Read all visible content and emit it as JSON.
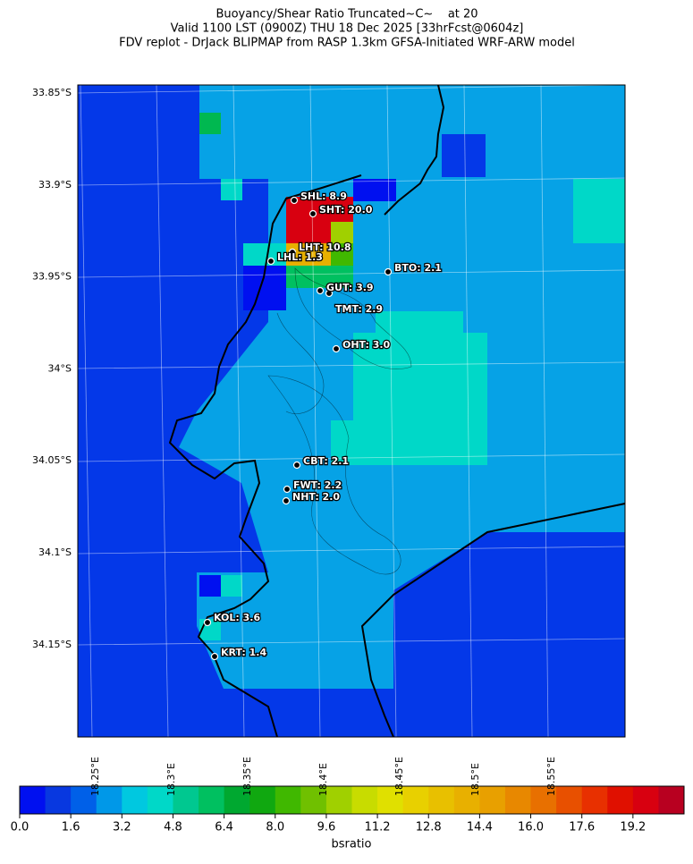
{
  "title": [
    "Buoyancy/Shear Ratio Truncated~C~    at 20",
    "Valid 1100 LST (0900Z) THU 18 Dec 2025 [33hrFcst@0604z]",
    "FDV replot - DrJack BLIPMAP from RASP 1.3km GFSA-Initiated WRF-ARW model"
  ],
  "lat_labels": [
    "33.85°S",
    "33.9°S",
    "33.95°S",
    "34°S",
    "34.05°S",
    "34.1°S",
    "34.15°S"
  ],
  "lon_labels": [
    "18.25°E",
    "18.3°E",
    "18.35°E",
    "18.4°E",
    "18.45°E",
    "18.5°E",
    "18.55°E"
  ],
  "stations": [
    "SHL: 8.9",
    "SHT: 20.0",
    "LHT: 10.8",
    "LHL: 1.3",
    "BTO: 2.1",
    "GUT: 3.9",
    "TMT: 2.9",
    "OHT: 3.0",
    "CBT: 2.1",
    "FWT: 2.2",
    "NHT: 2.0",
    "KOL: 3.6",
    "KRT: 1.4"
  ],
  "colorbar": {
    "label": "bsratio",
    "xlim": [
      0,
      20.8
    ],
    "ticks": [
      {
        "value": 0,
        "label": "0.0"
      },
      {
        "value": 1.6,
        "label": "1.6"
      },
      {
        "value": 3.2,
        "label": "3.2"
      },
      {
        "value": 4.8,
        "label": "4.8"
      },
      {
        "value": 6.4,
        "label": "6.4"
      },
      {
        "value": 8,
        "label": "8.0"
      },
      {
        "value": 9.6,
        "label": "9.6"
      },
      {
        "value": 11.2,
        "label": "11.2"
      },
      {
        "value": 12.8,
        "label": "12.8"
      },
      {
        "value": 14.4,
        "label": "14.4"
      },
      {
        "value": 16,
        "label": "16.0"
      },
      {
        "value": 17.6,
        "label": "17.6"
      },
      {
        "value": 19.2,
        "label": "19.2"
      }
    ],
    "colors": [
      "#0010f0",
      "#0838e0",
      "#0060e8",
      "#0098e8",
      "#00c8e0",
      "#00d8c8",
      "#00c890",
      "#00c060",
      "#00a830",
      "#10a810",
      "#40b800",
      "#70c000",
      "#a0d000",
      "#c8dc00",
      "#e0e000",
      "#e8d000",
      "#e8c000",
      "#e8b000",
      "#e8a000",
      "#e88800",
      "#e87000",
      "#e85000",
      "#e83000",
      "#e01000",
      "#d80010",
      "#b80020"
    ]
  }
}
